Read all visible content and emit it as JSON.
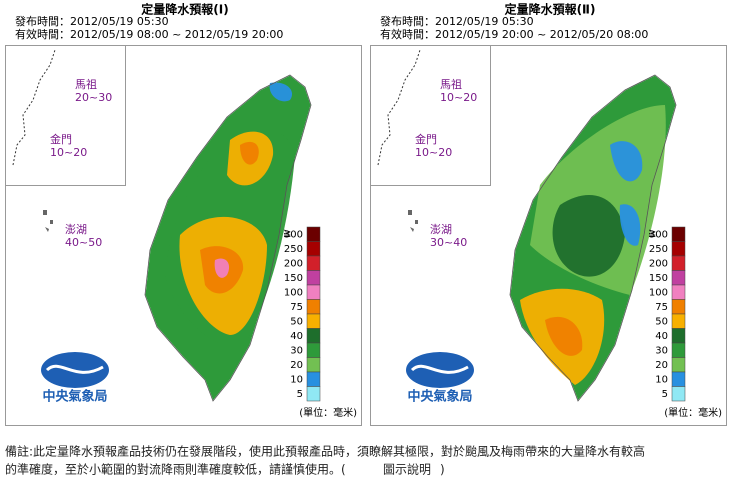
{
  "panels": [
    {
      "title": "定量降水預報(Ⅰ)",
      "issued": "發布時間：2012/05/19 05:30",
      "valid": "有效時間：2012/05/19 08:00 ~ 2012/05/19 20:00",
      "places": [
        {
          "name": "馬祖",
          "range": "20~30"
        },
        {
          "name": "金門",
          "range": "10~20"
        },
        {
          "name": "澎湖",
          "range": "40~50"
        }
      ]
    },
    {
      "title": "定量降水預報(Ⅱ)",
      "issued": "發布時間：2012/05/19 05:30",
      "valid": "有效時間：2012/05/19 20:00 ~ 2012/05/20 08:00",
      "places": [
        {
          "name": "馬祖",
          "range": "10~20"
        },
        {
          "name": "金門",
          "range": "10~20"
        },
        {
          "name": "澎湖",
          "range": "30~40"
        }
      ]
    }
  ],
  "legend": {
    "prefix": "≧",
    "unit": "(單位：毫米)",
    "levels": [
      {
        "value": 300,
        "color": "#6b0000"
      },
      {
        "value": 250,
        "color": "#a50000"
      },
      {
        "value": 200,
        "color": "#d2202a"
      },
      {
        "value": 150,
        "color": "#c040a0"
      },
      {
        "value": 100,
        "color": "#f080c0"
      },
      {
        "value": 75,
        "color": "#f08000"
      },
      {
        "value": 50,
        "color": "#f8b000"
      },
      {
        "value": 40,
        "color": "#1e6e2c"
      },
      {
        "value": 30,
        "color": "#2e9a3a"
      },
      {
        "value": 20,
        "color": "#72c052"
      },
      {
        "value": 10,
        "color": "#2890e0"
      },
      {
        "value": 5,
        "color": "#90e8f4"
      }
    ]
  },
  "logo": "中央氣象局",
  "footer": {
    "line1": "備註:此定量降水預報產品技術仍在發展階段，使用此預報產品時，須瞭解其極限，對於颱風及梅雨帶來的大量降水有較高",
    "line2": "的準確度，至於小範圍的對流降雨則準確度較低，請謹慎使用。(",
    "link": "圖示說明",
    "close": ")"
  }
}
